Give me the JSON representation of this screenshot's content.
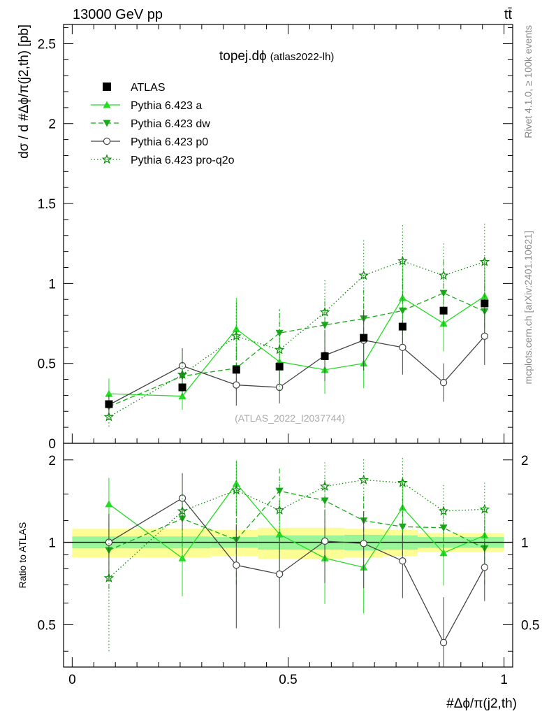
{
  "header": {
    "left_label": "13000 GeV pp",
    "right_label": "tt̄"
  },
  "chart_data": {
    "type": "line",
    "title": "topej.dϕ",
    "title_tag": "(atlas2022-lh)",
    "watermark": "(ATLAS_2022_I2037744)",
    "ylabel_main": "dσ / d #Δϕ/π(j2,th) [pb]",
    "ylabel_ratio": "Ratio to ATLAS",
    "xlabel": "#Δϕ/π(j2,th)",
    "side_label_top": "Rivet 4.1.0, ≥ 100k events",
    "side_label_bottom": "mcplots.cern.ch [arXiv:2401.10621]",
    "xlim": [
      -0.02,
      1.02
    ],
    "main_ylim": [
      0,
      2.62
    ],
    "ratio_ylim": [
      0.35,
      2.3
    ],
    "x_ticks": [
      "0",
      "0.5",
      "1"
    ],
    "main_y_ticks": [
      "0",
      "0.5",
      "1",
      "1.5",
      "2",
      "2.5"
    ],
    "ratio_y_ticks": [
      "0.5",
      "1",
      "2"
    ],
    "bin_edges": [
      0.0,
      0.17,
      0.32,
      0.43,
      0.53,
      0.63,
      0.72,
      0.8,
      0.9,
      1.0
    ],
    "x": [
      0.085,
      0.255,
      0.38,
      0.48,
      0.585,
      0.675,
      0.765,
      0.86,
      0.955
    ],
    "data": {
      "name": "ATLAS",
      "values": [
        0.245,
        0.35,
        0.46,
        0.48,
        0.545,
        0.66,
        0.73,
        0.83,
        0.875
      ],
      "band_inner_rel": [
        0.05,
        0.05,
        0.045,
        0.06,
        0.06,
        0.065,
        0.06,
        0.045,
        0.045
      ],
      "band_outer_rel": [
        0.12,
        0.12,
        0.11,
        0.13,
        0.13,
        0.12,
        0.11,
        0.08,
        0.08
      ]
    },
    "series": [
      {
        "name": "Pythia 6.423 a",
        "color": "#22dd22",
        "dash": "none",
        "marker": "triangle-up",
        "values": [
          0.31,
          0.295,
          0.715,
          0.51,
          0.46,
          0.5,
          0.91,
          0.75,
          0.92
        ],
        "errors": [
          0.095,
          0.085,
          0.195,
          0.15,
          0.15,
          0.155,
          0.26,
          0.175,
          0.235
        ],
        "ratio": [
          1.38,
          0.875,
          1.64,
          1.07,
          0.875,
          0.81,
          1.34,
          0.915,
          1.06
        ],
        "ratio_err": [
          0.34,
          0.24,
          0.35,
          0.35,
          0.28,
          0.26,
          0.37,
          0.22,
          0.28
        ]
      },
      {
        "name": "Pythia 6.423 dw",
        "color": "#18aa18",
        "dash": "7,4",
        "marker": "triangle-down",
        "values": [
          0.23,
          0.42,
          0.47,
          0.69,
          0.74,
          0.78,
          0.83,
          0.94,
          0.825
        ],
        "errors": [
          0.07,
          0.11,
          0.14,
          0.15,
          0.17,
          0.18,
          0.2,
          0.21,
          0.2
        ],
        "ratio": [
          0.935,
          1.22,
          1.02,
          1.54,
          1.42,
          1.2,
          1.14,
          1.13,
          0.95
        ],
        "ratio_err": [
          0.26,
          0.31,
          0.32,
          0.33,
          0.32,
          0.3,
          0.3,
          0.25,
          0.25
        ]
      },
      {
        "name": "Pythia 6.423 p0",
        "color": "#444444",
        "dash": "none",
        "marker": "circle-open",
        "values": [
          0.24,
          0.485,
          0.365,
          0.35,
          0.55,
          0.645,
          0.6,
          0.38,
          0.67
        ],
        "errors": [
          0.06,
          0.11,
          0.13,
          0.1,
          0.16,
          0.19,
          0.17,
          0.12,
          0.18
        ],
        "ratio": [
          1.0,
          1.45,
          0.825,
          0.765,
          1.01,
          0.99,
          0.855,
          0.43,
          0.81
        ],
        "ratio_err": [
          0.27,
          0.34,
          0.34,
          0.28,
          0.3,
          0.31,
          0.23,
          0.2,
          0.2
        ]
      },
      {
        "name": "Pythia 6.423 pro-q2o",
        "color": "#0a8a0a",
        "dash": "1.5,3",
        "marker": "star",
        "values": [
          0.165,
          0.43,
          0.67,
          0.585,
          0.82,
          1.05,
          1.14,
          1.05,
          1.135
        ],
        "errors": [
          0.06,
          0.13,
          0.21,
          0.25,
          0.2,
          0.22,
          0.235,
          0.2,
          0.24
        ],
        "ratio": [
          0.74,
          1.3,
          1.55,
          1.31,
          1.6,
          1.69,
          1.65,
          1.3,
          1.32
        ],
        "ratio_err": [
          0.34,
          0.36,
          0.43,
          0.39,
          0.36,
          0.35,
          0.4,
          0.33,
          0.33
        ]
      }
    ]
  }
}
